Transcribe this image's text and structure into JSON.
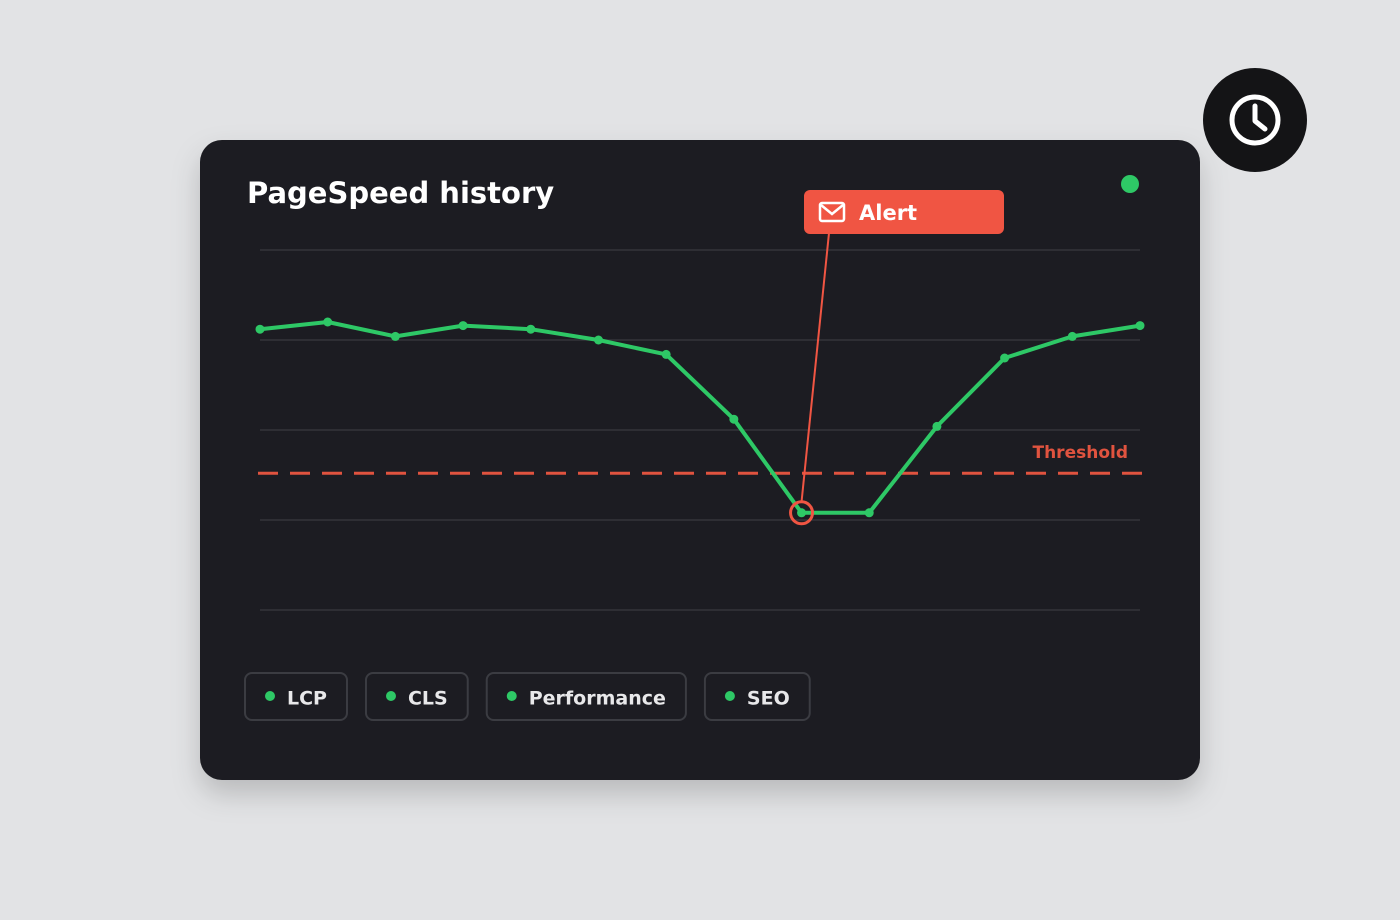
{
  "chart_data": {
    "type": "line",
    "title": "PageSpeed history",
    "categories": [
      null,
      null,
      null,
      null,
      null,
      null,
      null,
      null,
      null,
      null,
      null,
      null,
      null,
      null
    ],
    "values": [
      78,
      80,
      76,
      79,
      78,
      75,
      71,
      53,
      27,
      27,
      51,
      70,
      76,
      79
    ],
    "color": "#2ec866",
    "ylim": [
      0,
      100
    ],
    "gridlines": [
      0,
      25,
      50,
      75,
      100
    ],
    "threshold": {
      "value": 38,
      "label": "Threshold",
      "color": "#e0533f"
    },
    "alert": {
      "label": "Alert",
      "color": "#f05543"
    }
  },
  "filters": [
    "LCP",
    "CLS",
    "Performance",
    "SEO"
  ]
}
